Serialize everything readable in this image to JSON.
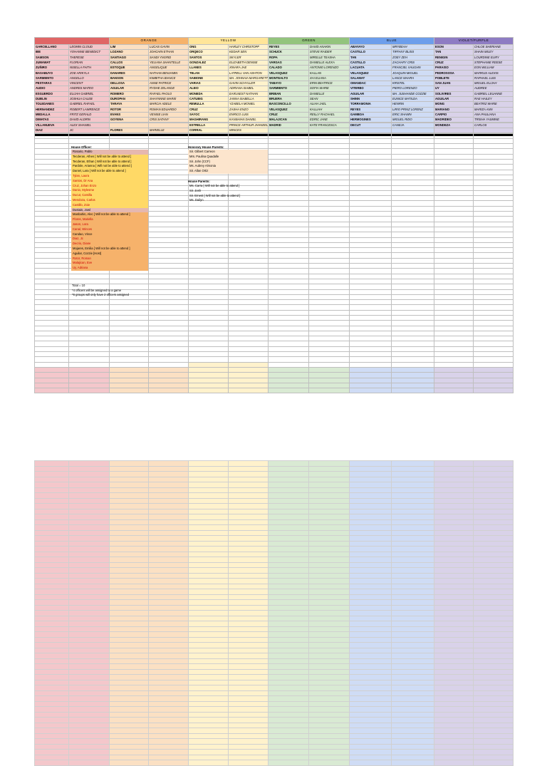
{
  "houses": [
    {
      "name": "",
      "dark": "c-red-d",
      "light": "c-red-l"
    },
    {
      "name": "ORANGE",
      "dark": "c-org-d",
      "light": "c-org-l"
    },
    {
      "name": "YELLOW",
      "dark": "c-yel-d",
      "light": "c-yel-l"
    },
    {
      "name": "GREEN",
      "dark": "c-grn-d",
      "light": "c-grn-l"
    },
    {
      "name": "BLUE",
      "dark": "c-blu-d",
      "light": "c-blu-l"
    },
    {
      "name": "VIOLET/PURPLE",
      "dark": "c-vio-d",
      "light": "c-vio-l"
    }
  ],
  "rows": [
    [
      "GARCELLANO",
      "LEOMIN CLOUD",
      "LIM",
      "LUCAS GAVIN",
      "ONG",
      "HARLEY CHRISTOPF",
      "REYES",
      "DAVID ANAKIN",
      "ABAYAYO",
      "MRYBEAH",
      "ESON",
      "CHLOE SHERIANE"
    ],
    [
      "IBE",
      "YOHANNE BENEDICT",
      "LOZANO",
      "JOHCHIN ETHAN",
      "ORQECO",
      "KEDAR SEN",
      "SCHUCK",
      "STEVE RAIDER",
      "CASTILLO",
      "TIFFANY BLISS",
      "TAN",
      "SHAIN MILEY"
    ],
    [
      "SAMSON",
      "THERESE",
      "SANTIAGO",
      "SANDI YNGRID",
      "SANTOS",
      "SKYLER",
      "ROPA",
      "MIRELLE TEASHA",
      "TAN",
      "ZOEY ZEH",
      "RENIGIN",
      "LOURDINE ELIRY"
    ],
    [
      "JUMAWAT",
      "FLORIAN",
      "CALLOS",
      "YELIANA SHANTELLE",
      "GONZALEZ",
      "ELIZABETH DENISE",
      "VARGAS",
      "DANIELLE ALEXA",
      "CASTILLO",
      "ZACHARY CRIS",
      "CRUZ",
      "STEPHANIE REESE"
    ],
    [
      "ZUÑIRO",
      "NISELLA FAITH",
      "ESTOQUE",
      "ANGELIQUE",
      "LLANES",
      "XINARA JAE",
      "CALADO",
      "ANTONIO LORENZO",
      "LACUATA",
      "FRANCIEL VAUGHN",
      "PARAISO",
      "EON WILLIAM"
    ],
    [
      "BASABUYO",
      "ZOE ARIKYLA",
      "DANARES",
      "NATHAN BENJAMIN",
      "TELAN",
      "LATRELL VAN ASHTON",
      "VELASQUEZ",
      "KALLAN",
      "VELASQUEZ",
      "JOAQUIN MIGUEL",
      "PEDROSOSA",
      "MARKUS ALEXIS"
    ],
    [
      "SARMIENTO",
      "ANGELLO",
      "BANSON",
      "KIMBITHA BIANCE",
      "SABIONE",
      "MA. JOHNAIA MARGARETTE",
      "MONTEALTO",
      "XAI ELIANA",
      "SALAMAT",
      "LANCE MAHRA",
      "POBLETE",
      "RAPHAEL LUIS"
    ],
    [
      "PESTARAS",
      "VINCENT",
      "DELLOSA",
      "ANNE PATRICE",
      "VARIAS",
      "GAVIN SCHYLLER",
      "TABAYO",
      "ERIN BEATRICE",
      "OMANDAC",
      "KRISTEL",
      "SAN JUAN",
      "MIGUEL ELIJAH"
    ],
    [
      "AUDIO",
      "ANDRES MATEO",
      "AGUILAR",
      "RYDHE ZELANGE",
      "ALEIO",
      "ADRIANA ISABEL",
      "SARMIENTO",
      "SOFIA MARIE",
      "VITERBO",
      "PIERO LORENZO",
      "UY",
      "AUDREE"
    ],
    [
      "ESGUERDO",
      "ELIJAH GABRIEL",
      "ROMERO",
      "RAFAEL PAOLO",
      "MONEDA",
      "EARLNEST NATHAN",
      "BRIBAN",
      "DANIELLE",
      "AGUILAR",
      "MA. JUSHANDE COZZIE",
      "SOLIVIRES",
      "GABRIEL LEUANNE"
    ],
    [
      "DUBLIN",
      "JOSHUA CALEB",
      "DUROPAN",
      "SHAYNNNE MARIE",
      "CATUBIG",
      "JANNA ISABELLA",
      "BRUERA",
      "SEAN",
      "SHINN",
      "EUNICE MATILDA",
      "AGUILAR",
      "RAE HAILEY"
    ],
    [
      "TOLEDANES",
      "GABRIEL RAFAEL",
      "TARAYA",
      "MARCIA ADELE",
      "REMULLA",
      "YZABELA MONIEL",
      "BASCONCILLO",
      "ALIAH JAEL",
      "TORRAMONIA",
      "HENRIN",
      "MONG",
      "BEATRIZ MARIE"
    ],
    [
      "HERNANDEZ",
      "ROBERT LAWRENCE",
      "ROTOR",
      "ROMAN EDUARDO",
      "CRUZ",
      "ZASHA ENZO",
      "VELASQUEZ",
      "KALLIAH",
      "REYES",
      "LIRIO PRINZ LORENZ",
      "MARIANO",
      "MARIZA ANN"
    ],
    [
      "MEDALLA",
      "FRITZ GERALD",
      "EVANS",
      "VENISE LIAN",
      "SAYOC",
      "ENRICO LUIS",
      "CRUZ",
      "REILLY RACHAEL",
      "GAMBOA",
      "ERIC SHAWN",
      "CARPIO",
      "ANA PAULIANA"
    ],
    [
      "DIMATAS",
      "DAVID ALDRIN",
      "GOYENA",
      "CRIS SATANY",
      "MAGHIRANG",
      "KANSHIAN DANIEL",
      "MALAJICAN",
      "EDRIC JANE",
      "HERMOGINES",
      "MIGUEL RIDO",
      "MADRIDEO",
      "TRISHA YASMINE"
    ],
    [
      "VILLANUEVA",
      "ALEX SHANIEL",
      "",
      "",
      "ESTRELLA",
      "PRINCE ARTHUR JHANEEL",
      "MADRID",
      "KATE FRANCESCA",
      "DECUT",
      "CANEJA",
      "MONDEZA",
      "CARLOS"
    ],
    [
      "DIAZ",
      "JC",
      "FLORES",
      "MARIELLE",
      "CORRAL",
      "WINCES",
      "",
      "",
      "",
      "",
      "",
      ""
    ]
  ],
  "officers": {
    "title": "House Officer:",
    "items": [
      {
        "text": "Rosario, Pablo",
        "bg": "o1",
        "fg": "dk"
      },
      {
        "text": "Tecderan, Athen [ Will not be able to attend ]",
        "bg": "o2",
        "fg": "dk"
      },
      {
        "text": "Tecderan, Ethan [ Will not be able to attend ]",
        "bg": "o2",
        "fg": "dk"
      },
      {
        "text": "Pardole, Arianna [ Will not be able to attend ]",
        "bg": "o2",
        "fg": "dk"
      },
      {
        "text": "Daniel, Lara [ Will not be able to attend ]",
        "bg": "o2",
        "fg": "dk"
      },
      {
        "text": "Tylan, Laura",
        "bg": "o2",
        "fg": "red"
      },
      {
        "text": "Santos, Dr Ana",
        "bg": "o2",
        "fg": "red"
      },
      {
        "text": "Cruz, Johan Enzo",
        "bg": "o2",
        "fg": "red"
      },
      {
        "text": "Danio, Mylesme",
        "bg": "o2",
        "fg": "red"
      },
      {
        "text": "Ducut, Camilla",
        "bg": "o2",
        "fg": "red"
      },
      {
        "text": "Mendoza, Carlos",
        "bg": "o2",
        "fg": "red"
      },
      {
        "text": "Castillo, Zoie",
        "bg": "o2",
        "fg": "red"
      },
      {
        "text": "Dustain, Jowl",
        "bg": "o1",
        "fg": "dk"
      },
      {
        "text": "Manbahin, Alec [ Will not be able to attend ]",
        "bg": "o3",
        "fg": "dk"
      },
      {
        "text": "Flores, Mariella",
        "bg": "o3",
        "fg": "red"
      },
      {
        "text": "Jason, Lora",
        "bg": "o3",
        "fg": "red"
      },
      {
        "text": "Canal, Winces",
        "bg": "o3",
        "fg": "red"
      },
      {
        "text": "Candao, Vince",
        "bg": "o3",
        "fg": "dk"
      },
      {
        "text": "Diaz, Jc",
        "bg": "o3",
        "fg": "red"
      },
      {
        "text": "Decrio, Diane",
        "bg": "o3",
        "fg": "red"
      },
      {
        "text": "Mojares, Emilia [ Will not be able to attend ]",
        "bg": "o3",
        "fg": "dk"
      },
      {
        "text": "Aguilar, Cozzie [Host]",
        "bg": "o3",
        "fg": "dk"
      },
      {
        "text": "Rotor, Roman",
        "bg": "o3",
        "fg": "red"
      },
      {
        "text": "Malajican, Eve",
        "bg": "o3",
        "fg": "red"
      },
      {
        "text": "Uy, Adriana",
        "bg": "o3",
        "fg": "red"
      }
    ]
  },
  "honorary": {
    "title": "Honorary House Parents:",
    "items": [
      "Sir. Gilbert Carreon",
      "Mrs. Paulina Quadalle",
      "Sir. John (CCF)",
      "Ms. Aubrey Almonia",
      "Sir. Allan Ortiz"
    ]
  },
  "parents": {
    "title": "House Parents:",
    "items": [
      "Ms. Carra [ Will not be able to attend ]",
      "Sir. Josh",
      "Sir. Ernest [ Will not be able to attend ]",
      "Ms. Dailyn"
    ]
  },
  "notes": [
    "Total = 10",
    "*4 officers will be assigned to a game",
    "*6 groups will only have 2 officers assigned"
  ]
}
